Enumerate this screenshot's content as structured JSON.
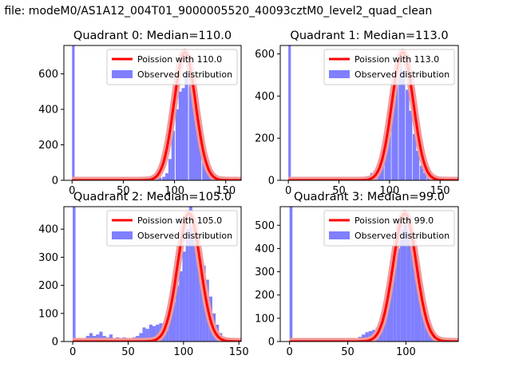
{
  "figure": {
    "suptitle": "n file: modeM0/AS1A12_004T01_9000005520_40093cztM0_level2_quad_clean"
  },
  "colors": {
    "hist": "#7f7fff",
    "poisson": "#ff0000",
    "poisson_halo": "#f09a9a"
  },
  "chart_data": [
    {
      "type": "bar",
      "title": "Quadrant 0: Median=110.0",
      "xlim": [
        -8,
        165
      ],
      "ylim": [
        0,
        760
      ],
      "xticks": [
        0,
        50,
        100,
        150
      ],
      "yticks": [
        0,
        200,
        400,
        600
      ],
      "bin_width": 3.25,
      "bins": [
        0,
        46,
        49,
        52,
        55,
        58,
        62,
        65,
        68,
        71,
        75,
        78,
        81,
        84,
        88,
        91,
        94,
        97,
        101,
        104,
        107,
        110,
        114,
        117,
        120,
        123,
        127,
        130,
        133,
        136,
        140,
        143,
        146,
        149,
        153
      ],
      "counts": [
        760,
        0,
        0,
        0,
        0,
        0,
        0,
        0,
        0,
        0,
        5,
        15,
        10,
        15,
        20,
        40,
        120,
        280,
        400,
        500,
        520,
        610,
        630,
        570,
        440,
        300,
        180,
        100,
        50,
        20,
        8,
        3,
        0,
        0,
        0
      ],
      "poisson_mean": 110.0,
      "legend": {
        "line": "Poission with 110.0",
        "hist": "Observed distribution"
      }
    },
    {
      "type": "bar",
      "title": "Quadrant 1: Median=113.0",
      "xlim": [
        -8,
        168
      ],
      "ylim": [
        0,
        640
      ],
      "xticks": [
        0,
        50,
        100,
        150
      ],
      "yticks": [
        0,
        200,
        400,
        600
      ],
      "bin_width": 3.5,
      "bins": [
        0,
        70,
        74,
        77,
        81,
        84,
        88,
        91,
        95,
        98,
        102,
        105,
        109,
        112,
        116,
        119,
        123,
        126,
        130,
        133,
        137,
        140,
        144
      ],
      "counts": [
        640,
        5,
        10,
        20,
        35,
        45,
        60,
        120,
        200,
        300,
        400,
        500,
        560,
        520,
        430,
        330,
        220,
        140,
        70,
        35,
        15,
        5,
        2
      ],
      "poisson_mean": 113.0,
      "legend": {
        "line": "Poission with 113.0",
        "hist": "Observed distribution"
      }
    },
    {
      "type": "bar",
      "title": "Quadrant 2: Median=105.0",
      "xlim": [
        -8,
        152
      ],
      "ylim": [
        0,
        480
      ],
      "xticks": [
        0,
        50,
        100,
        150
      ],
      "yticks": [
        0,
        100,
        200,
        300,
        400
      ],
      "bin_width": 3.0,
      "bins": [
        0,
        6,
        9,
        12,
        15,
        18,
        21,
        24,
        27,
        30,
        33,
        36,
        39,
        42,
        45,
        48,
        51,
        54,
        57,
        60,
        63,
        66,
        69,
        72,
        75,
        78,
        81,
        84,
        87,
        90,
        93,
        96,
        99,
        102,
        105,
        108,
        111,
        114,
        117,
        120,
        123,
        126,
        129,
        132,
        135,
        138
      ],
      "counts": [
        480,
        5,
        10,
        20,
        30,
        20,
        25,
        35,
        20,
        15,
        25,
        10,
        15,
        10,
        15,
        10,
        10,
        15,
        20,
        30,
        50,
        45,
        60,
        55,
        60,
        65,
        55,
        80,
        110,
        140,
        200,
        250,
        320,
        400,
        480,
        420,
        380,
        320,
        270,
        220,
        160,
        100,
        60,
        30,
        15,
        5
      ],
      "poisson_mean": 105.0,
      "legend": {
        "line": "Poission with 105.0",
        "hist": "Observed distribution"
      }
    },
    {
      "type": "bar",
      "title": "Quadrant 3: Median=99.0",
      "xlim": [
        -8,
        145
      ],
      "ylim": [
        0,
        580
      ],
      "xticks": [
        0,
        50,
        100
      ],
      "yticks": [
        0,
        100,
        200,
        300,
        400,
        500
      ],
      "bin_width": 3.0,
      "bins": [
        0,
        50,
        53,
        56,
        59,
        62,
        65,
        68,
        71,
        74,
        77,
        80,
        83,
        86,
        89,
        92,
        95,
        98,
        101,
        104,
        107,
        110,
        113,
        116,
        119,
        122,
        125,
        128,
        131,
        134
      ],
      "counts": [
        580,
        5,
        10,
        15,
        20,
        30,
        40,
        45,
        50,
        60,
        90,
        120,
        180,
        240,
        320,
        400,
        480,
        560,
        520,
        440,
        360,
        280,
        200,
        130,
        80,
        45,
        20,
        10,
        5,
        2
      ],
      "poisson_mean": 99.0,
      "legend": {
        "line": "Poission with 99.0",
        "hist": "Observed distribution"
      }
    }
  ]
}
